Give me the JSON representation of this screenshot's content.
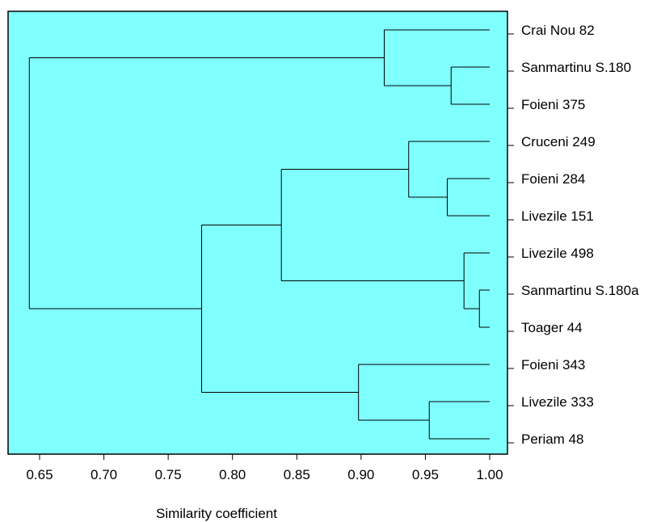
{
  "chart_data": {
    "type": "dendrogram",
    "xlabel": "Similarity coefficient",
    "xlim": [
      0.638,
      1.0
    ],
    "ticks": [
      0.65,
      0.7,
      0.75,
      0.8,
      0.85,
      0.9,
      0.95,
      1.0
    ],
    "tick_labels": [
      "0.65",
      "0.70",
      "0.75",
      "0.80",
      "0.85",
      "0.90",
      "0.95",
      "1.00"
    ],
    "leaves": [
      "Crai Nou 82",
      "Sanmartinu S.180",
      "Foieni 375",
      "Cruceni 249",
      "Foieni 284",
      "Livezile 151",
      "Livezile 498",
      "Sanmartinu S.180a",
      "Toager 44",
      "Foieni 343",
      "Livezile 333",
      "Periam 48"
    ],
    "merges": [
      {
        "id": "m1",
        "left": "Sanmartinu S.180",
        "right": "Foieni 375",
        "similarity": 0.97
      },
      {
        "id": "m2",
        "left": "Crai Nou 82",
        "right": "m1",
        "similarity": 0.918
      },
      {
        "id": "m3",
        "left": "Foieni 284",
        "right": "Livezile 151",
        "similarity": 0.967
      },
      {
        "id": "m4",
        "left": "Cruceni 249",
        "right": "m3",
        "similarity": 0.937
      },
      {
        "id": "m5",
        "left": "Sanmartinu S.180a",
        "right": "Toager 44",
        "similarity": 0.992
      },
      {
        "id": "m6",
        "left": "Livezile 498",
        "right": "m5",
        "similarity": 0.98
      },
      {
        "id": "m7",
        "left": "m4",
        "right": "m6",
        "similarity": 0.838
      },
      {
        "id": "m8",
        "left": "Livezile 333",
        "right": "Periam 48",
        "similarity": 0.953
      },
      {
        "id": "m9",
        "left": "Foieni 343",
        "right": "m8",
        "similarity": 0.898
      },
      {
        "id": "m10",
        "left": "m7",
        "right": "m9",
        "similarity": 0.776
      },
      {
        "id": "m11",
        "left": "m2",
        "right": "m10",
        "similarity": 0.642
      }
    ],
    "colors": {
      "plot_background": "#80ffff",
      "line": "#000000"
    }
  }
}
